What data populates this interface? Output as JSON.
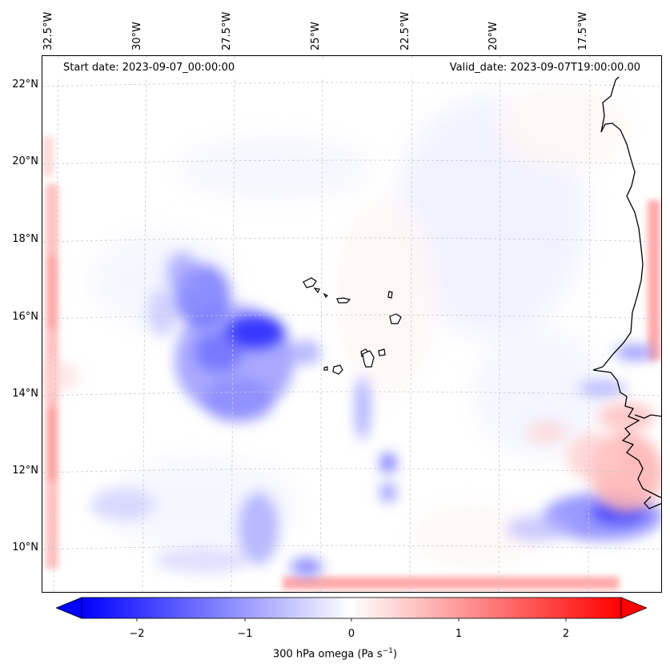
{
  "map": {
    "start_date": "Start date: 2023-09-07_00:00:00",
    "valid_date": "Valid_date: 2023-09-07T19:00:00.00",
    "lon_labels": [
      "32.5°W",
      "30°W",
      "27.5°W",
      "25°W",
      "22.5°W",
      "20°W",
      "17.5°W"
    ],
    "lat_labels": [
      "22°N",
      "20°N",
      "18°N",
      "16°N",
      "14°N",
      "12°N",
      "10°N"
    ],
    "field": "300 hPa omega",
    "colormap": "bwr",
    "colors": {
      "negative": "#0000ff",
      "zero": "#ffffff",
      "positive": "#ff0000",
      "coast": "#000000",
      "grid": "#c8c8c8"
    }
  },
  "colorbar": {
    "ticks": [
      "−2",
      "−1",
      "0",
      "1",
      "2"
    ],
    "range": [
      -2.6,
      2.6
    ],
    "label": "300 hPa omega (Pa s",
    "label_exp": "−1",
    "label_end": ")",
    "extend": "both"
  }
}
